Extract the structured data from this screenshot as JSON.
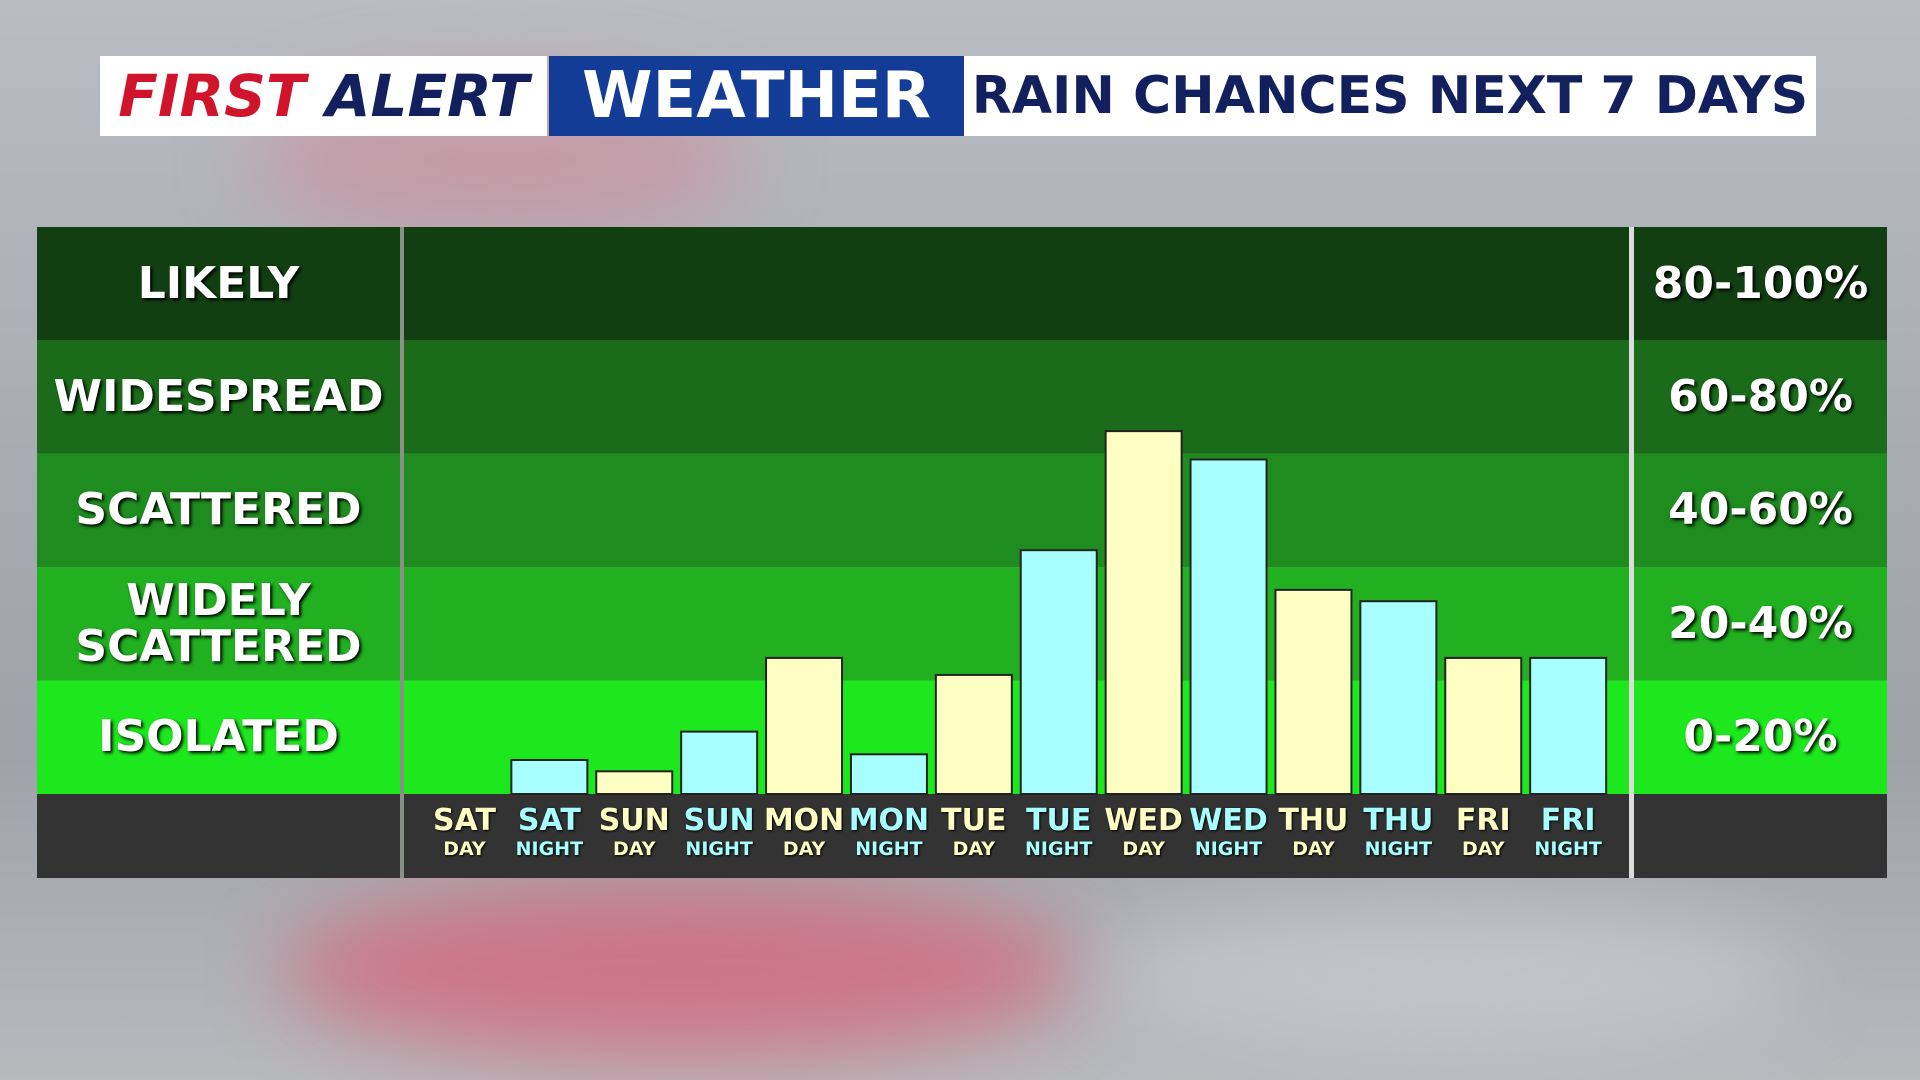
{
  "header": {
    "first": "FIRST",
    "alert": "ALERT",
    "weather": "WEATHER",
    "title": "RAIN CHANCES NEXT 7 DAYS"
  },
  "chart_data": {
    "type": "bar",
    "categories": [
      {
        "day": "SAT",
        "period": "DAY"
      },
      {
        "day": "SAT",
        "period": "NIGHT"
      },
      {
        "day": "SUN",
        "period": "DAY"
      },
      {
        "day": "SUN",
        "period": "NIGHT"
      },
      {
        "day": "MON",
        "period": "DAY"
      },
      {
        "day": "MON",
        "period": "NIGHT"
      },
      {
        "day": "TUE",
        "period": "DAY"
      },
      {
        "day": "TUE",
        "period": "NIGHT"
      },
      {
        "day": "WED",
        "period": "DAY"
      },
      {
        "day": "WED",
        "period": "NIGHT"
      },
      {
        "day": "THU",
        "period": "DAY"
      },
      {
        "day": "THU",
        "period": "NIGHT"
      },
      {
        "day": "FRI",
        "period": "DAY"
      },
      {
        "day": "FRI",
        "period": "NIGHT"
      }
    ],
    "values": [
      0,
      6,
      4,
      11,
      24,
      7,
      21,
      43,
      64,
      59,
      36,
      34,
      24,
      24
    ],
    "colors": [
      "#ffffc4",
      "#a8ffff",
      "#ffffc4",
      "#a8ffff",
      "#ffffc4",
      "#a8ffff",
      "#ffffc4",
      "#a8ffff",
      "#ffffc4",
      "#a8ffff",
      "#ffffc4",
      "#a8ffff",
      "#ffffc4",
      "#a8ffff"
    ],
    "label_colors": [
      "#ffffc4",
      "#a8ffff",
      "#ffffc4",
      "#a8ffff",
      "#ffffc4",
      "#a8ffff",
      "#ffffc4",
      "#a8ffff",
      "#ffffc4",
      "#a8ffff",
      "#ffffc4",
      "#a8ffff",
      "#ffffc4",
      "#a8ffff"
    ],
    "ylim": [
      0,
      100
    ],
    "bands": [
      {
        "label": "LIKELY",
        "range": "80-100%",
        "from": 80,
        "to": 100,
        "color": "#123f12"
      },
      {
        "label": "WIDESPREAD",
        "range": "60-80%",
        "from": 60,
        "to": 80,
        "color": "#1a6c1a"
      },
      {
        "label": "SCATTERED",
        "range": "40-60%",
        "from": 40,
        "to": 60,
        "color": "#1f8c1f"
      },
      {
        "label": "WIDELY SCATTERED",
        "range": "20-40%",
        "from": 20,
        "to": 40,
        "color": "#20b020"
      },
      {
        "label": "ISOLATED",
        "range": "0-20%",
        "from": 0,
        "to": 20,
        "color": "#1de81d"
      }
    ]
  }
}
